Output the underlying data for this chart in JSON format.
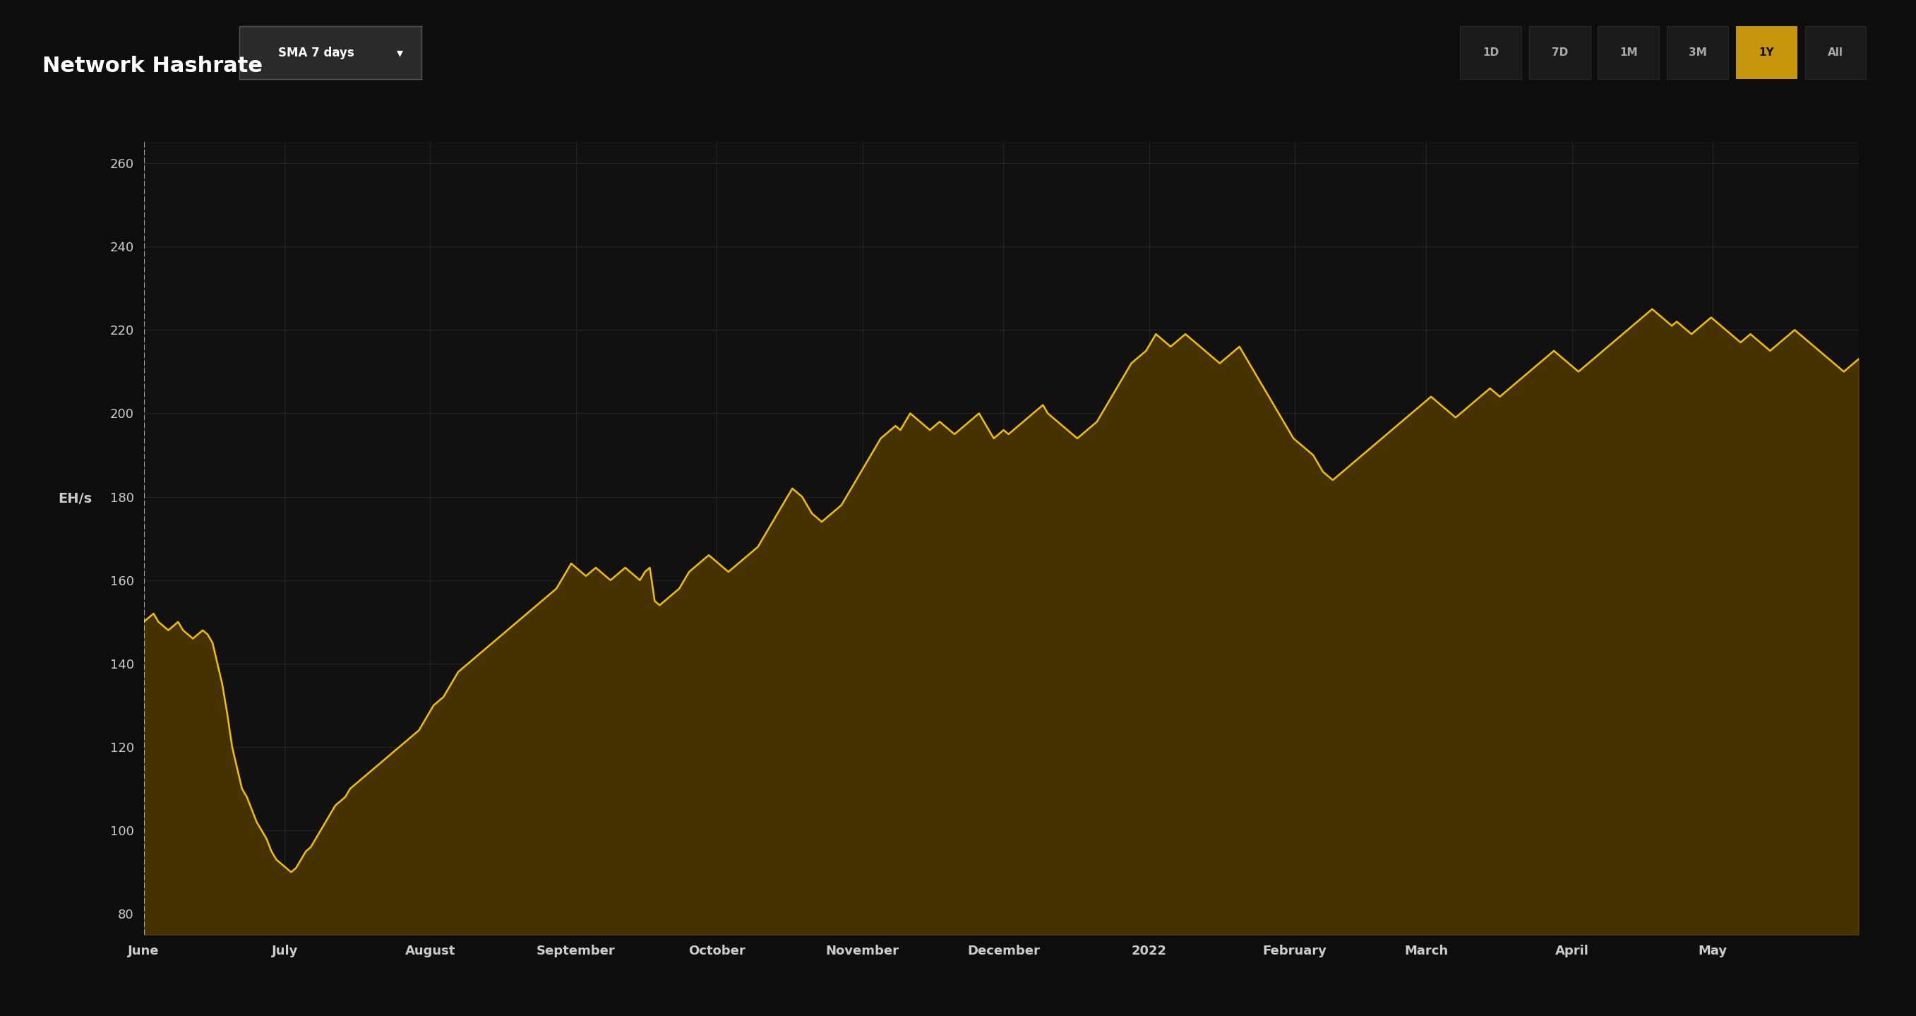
{
  "title": "Network Hashrate",
  "ylabel": "EH/s",
  "dropdown_label": "SMA 7 days",
  "background_color": "#0d0d0d",
  "plot_bg_color": "#111111",
  "line_color": "#f0c000",
  "grid_color": "#2a2a2a",
  "axis_label_color": "#cccccc",
  "title_color": "#ffffff",
  "ylim": [
    75,
    265
  ],
  "yticks": [
    80,
    100,
    120,
    140,
    160,
    180,
    200,
    220,
    240,
    260
  ],
  "x_labels": [
    "June",
    "July",
    "August",
    "September",
    "October",
    "November",
    "December",
    "2022",
    "February",
    "March",
    "April",
    "May"
  ],
  "x_positions": [
    0,
    30,
    61,
    92,
    122,
    153,
    183,
    214,
    245,
    273,
    304,
    334
  ],
  "time_buttons": [
    "1D",
    "7D",
    "1M",
    "3M",
    "1Y",
    "All"
  ],
  "active_button": "1Y",
  "hashrate_data": [
    150,
    151,
    152,
    150,
    149,
    148,
    149,
    150,
    148,
    147,
    146,
    147,
    148,
    147,
    145,
    140,
    135,
    128,
    120,
    115,
    110,
    108,
    105,
    102,
    100,
    98,
    95,
    93,
    92,
    91,
    90,
    91,
    93,
    95,
    96,
    98,
    100,
    102,
    104,
    106,
    107,
    108,
    110,
    111,
    112,
    113,
    114,
    115,
    116,
    117,
    118,
    119,
    120,
    121,
    122,
    123,
    124,
    126,
    128,
    130,
    131,
    132,
    134,
    136,
    138,
    139,
    140,
    141,
    142,
    143,
    144,
    145,
    146,
    147,
    148,
    149,
    150,
    151,
    152,
    153,
    154,
    155,
    156,
    157,
    158,
    160,
    162,
    164,
    163,
    162,
    161,
    162,
    163,
    162,
    161,
    160,
    161,
    162,
    163,
    162,
    161,
    160,
    162,
    163,
    155,
    154,
    155,
    156,
    157,
    158,
    160,
    162,
    163,
    164,
    165,
    166,
    165,
    164,
    163,
    162,
    163,
    164,
    165,
    166,
    167,
    168,
    170,
    172,
    174,
    176,
    178,
    180,
    182,
    181,
    180,
    178,
    176,
    175,
    174,
    175,
    176,
    177,
    178,
    180,
    182,
    184,
    186,
    188,
    190,
    192,
    194,
    195,
    196,
    197,
    196,
    198,
    200,
    199,
    198,
    197,
    196,
    197,
    198,
    197,
    196,
    195,
    196,
    197,
    198,
    199,
    200,
    198,
    196,
    194,
    195,
    196,
    195,
    196,
    197,
    198,
    199,
    200,
    201,
    202,
    200,
    199,
    198,
    197,
    196,
    195,
    194,
    195,
    196,
    197,
    198,
    200,
    202,
    204,
    206,
    208,
    210,
    212,
    213,
    214,
    215,
    217,
    219,
    218,
    217,
    216,
    217,
    218,
    219,
    218,
    217,
    216,
    215,
    214,
    213,
    212,
    213,
    214,
    215,
    216,
    214,
    212,
    210,
    208,
    206,
    204,
    202,
    200,
    198,
    196,
    194,
    193,
    192,
    191,
    190,
    188,
    186,
    185,
    184,
    185,
    186,
    187,
    188,
    189,
    190,
    191,
    192,
    193,
    194,
    195,
    196,
    197,
    198,
    199,
    200,
    201,
    202,
    203,
    204,
    203,
    202,
    201,
    200,
    199,
    200,
    201,
    202,
    203,
    204,
    205,
    206,
    205,
    204,
    205,
    206,
    207,
    208,
    209,
    210,
    211,
    212,
    213,
    214,
    215,
    214,
    213,
    212,
    211,
    210,
    211,
    212,
    213,
    214,
    215,
    216,
    217,
    218,
    219,
    220,
    221,
    222,
    223,
    224,
    225,
    224,
    223,
    222,
    221,
    222,
    221,
    220,
    219,
    220,
    221,
    222,
    223,
    222,
    221,
    220,
    219,
    218,
    217,
    218,
    219,
    218,
    217,
    216,
    215,
    216,
    217,
    218,
    219,
    220,
    219,
    218,
    217,
    216,
    215,
    214,
    213,
    212,
    211,
    210,
    211,
    212,
    213
  ]
}
